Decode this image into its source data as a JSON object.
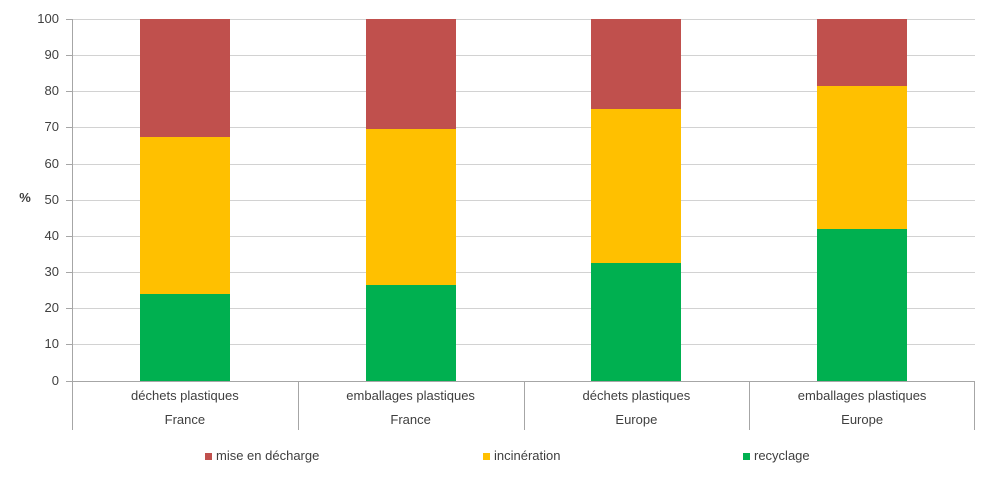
{
  "chart_data": {
    "type": "bar",
    "stacked": true,
    "orientation": "vertical",
    "ylabel": "%",
    "ylim": [
      0,
      100
    ],
    "yticks": [
      0,
      10,
      20,
      30,
      40,
      50,
      60,
      70,
      80,
      90,
      100
    ],
    "grid": true,
    "legend_position": "bottom",
    "categories": [
      "déchets plastiques",
      "emballages plastiques",
      "déchets plastiques",
      "emballages plastiques"
    ],
    "category_groups": [
      "France",
      "France",
      "Europe",
      "Europe"
    ],
    "series": [
      {
        "name": "mise en décharge",
        "color": "#C0504D",
        "values": [
          32.5,
          30.5,
          25,
          18.5
        ]
      },
      {
        "name": "incinération",
        "color": "#FFC000",
        "values": [
          43.5,
          43,
          42.5,
          39.5
        ]
      },
      {
        "name": "recyclage",
        "color": "#00B050",
        "values": [
          24,
          26.5,
          32.5,
          42
        ]
      }
    ]
  }
}
